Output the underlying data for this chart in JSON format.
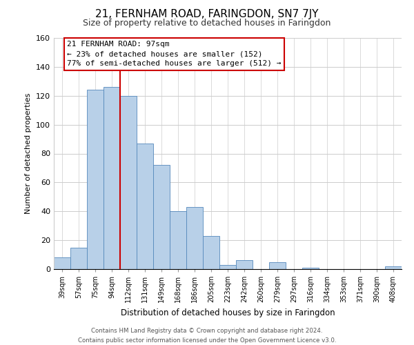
{
  "title": "21, FERNHAM ROAD, FARINGDON, SN7 7JY",
  "subtitle": "Size of property relative to detached houses in Faringdon",
  "xlabel": "Distribution of detached houses by size in Faringdon",
  "ylabel": "Number of detached properties",
  "bar_labels": [
    "39sqm",
    "57sqm",
    "75sqm",
    "94sqm",
    "112sqm",
    "131sqm",
    "149sqm",
    "168sqm",
    "186sqm",
    "205sqm",
    "223sqm",
    "242sqm",
    "260sqm",
    "279sqm",
    "297sqm",
    "316sqm",
    "334sqm",
    "353sqm",
    "371sqm",
    "390sqm",
    "408sqm"
  ],
  "bar_values": [
    8,
    15,
    124,
    126,
    120,
    87,
    72,
    40,
    43,
    23,
    3,
    6,
    0,
    5,
    0,
    1,
    0,
    0,
    0,
    0,
    2
  ],
  "bar_color": "#b8d0e8",
  "bar_edge_color": "#5588bb",
  "vline_x": 3.5,
  "vline_color": "#cc0000",
  "annotation_title": "21 FERNHAM ROAD: 97sqm",
  "annotation_line1": "← 23% of detached houses are smaller (152)",
  "annotation_line2": "77% of semi-detached houses are larger (512) →",
  "annotation_box_color": "#ffffff",
  "annotation_box_edge": "#cc0000",
  "ylim": [
    0,
    160
  ],
  "yticks": [
    0,
    20,
    40,
    60,
    80,
    100,
    120,
    140,
    160
  ],
  "footer1": "Contains HM Land Registry data © Crown copyright and database right 2024.",
  "footer2": "Contains public sector information licensed under the Open Government Licence v3.0.",
  "fig_width": 6.0,
  "fig_height": 5.0,
  "background_color": "#ffffff",
  "grid_color": "#cccccc"
}
